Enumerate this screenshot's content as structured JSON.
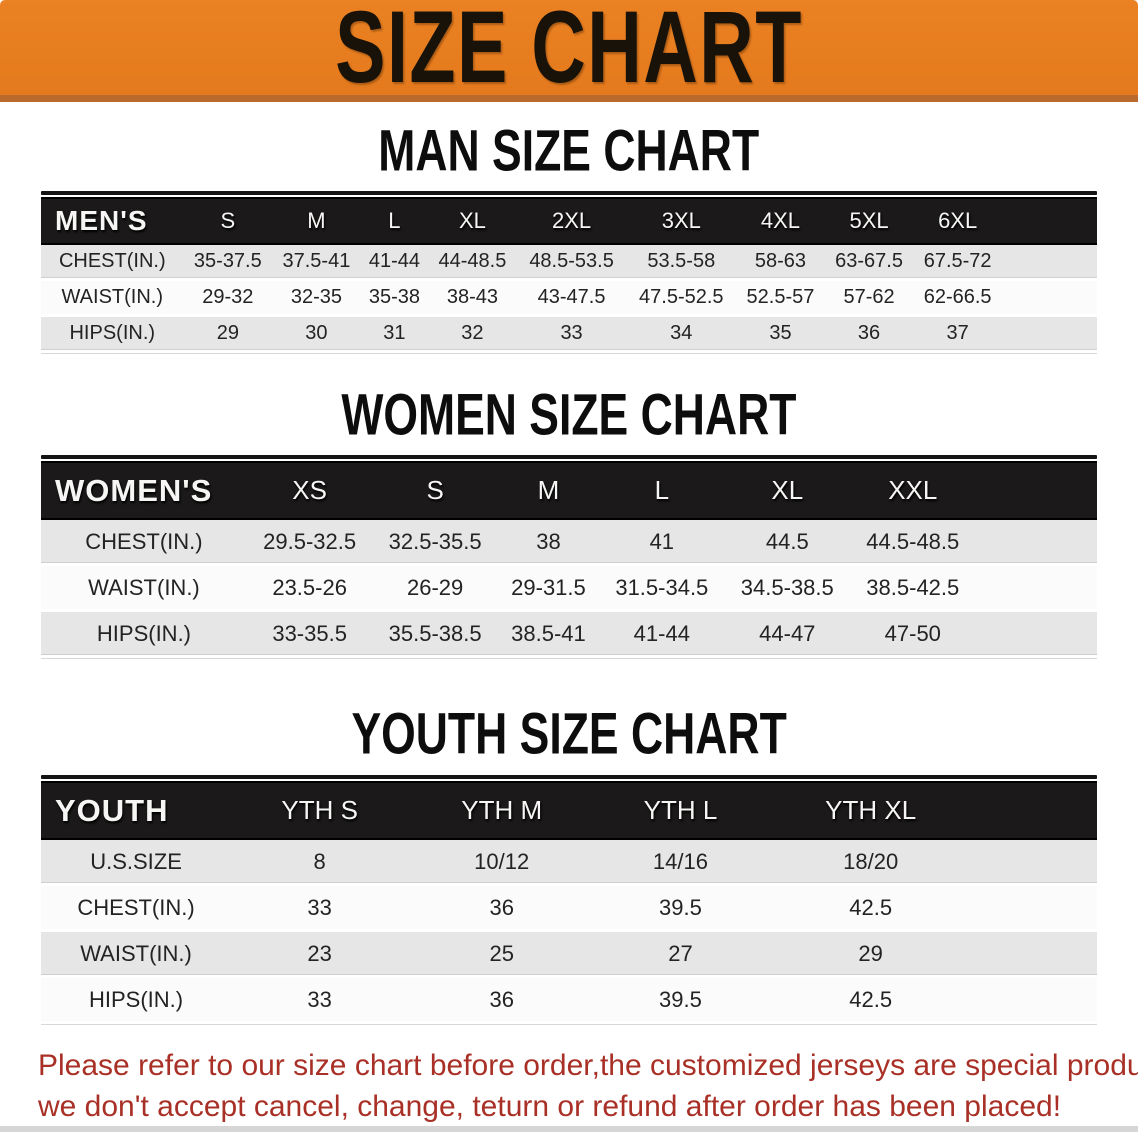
{
  "banner": {
    "title": "SIZE CHART",
    "bg_color": "#e67e1f",
    "text_color": "#181209"
  },
  "sections": [
    {
      "id": "men",
      "heading": "MAN SIZE CHART",
      "table": {
        "header": [
          "MEN'S",
          "S",
          "M",
          "L",
          "XL",
          "2XL",
          "3XL",
          "4XL",
          "5XL",
          "6XL"
        ],
        "rows": [
          [
            "CHEST(IN.)",
            "35-37.5",
            "37.5-41",
            "41-44",
            "44-48.5",
            "48.5-53.5",
            "53.5-58",
            "58-63",
            "63-67.5",
            "67.5-72"
          ],
          [
            "WAIST(IN.)",
            "29-32",
            "32-35",
            "35-38",
            "38-43",
            "43-47.5",
            "47.5-52.5",
            "52.5-57",
            "57-62",
            "62-66.5"
          ],
          [
            "HIPS(IN.)",
            "29",
            "30",
            "31",
            "32",
            "33",
            "34",
            "35",
            "36",
            "37"
          ]
        ]
      }
    },
    {
      "id": "women",
      "heading": "WOMEN SIZE CHART",
      "table": {
        "header": [
          "WOMEN'S",
          "XS",
          "S",
          "M",
          "L",
          "XL",
          "XXL"
        ],
        "rows": [
          [
            "CHEST(IN.)",
            "29.5-32.5",
            "32.5-35.5",
            "38",
            "41",
            "44.5",
            "44.5-48.5"
          ],
          [
            "WAIST(IN.)",
            "23.5-26",
            "26-29",
            "29-31.5",
            "31.5-34.5",
            "34.5-38.5",
            "38.5-42.5"
          ],
          [
            "HIPS(IN.)",
            "33-35.5",
            "35.5-38.5",
            "38.5-41",
            "41-44",
            "44-47",
            "47-50"
          ]
        ]
      }
    },
    {
      "id": "youth",
      "heading": "YOUTH SIZE CHART",
      "table": {
        "header": [
          "YOUTH",
          "YTH S",
          "YTH M",
          "YTH L",
          "YTH XL"
        ],
        "rows": [
          [
            "U.S.SIZE",
            "8",
            "10/12",
            "14/16",
            "18/20"
          ],
          [
            "CHEST(IN.)",
            "33",
            "36",
            "39.5",
            "42.5"
          ],
          [
            "WAIST(IN.)",
            "23",
            "25",
            "27",
            "29"
          ],
          [
            "HIPS(IN.)",
            "33",
            "36",
            "39.5",
            "42.5"
          ]
        ]
      }
    }
  ],
  "footer_note": {
    "line1": "Please refer to our size chart before order,the customized jerseys are special products,",
    "line2": "we don't accept cancel, change, teturn or refund after order has been placed!",
    "color": "#a93026"
  }
}
